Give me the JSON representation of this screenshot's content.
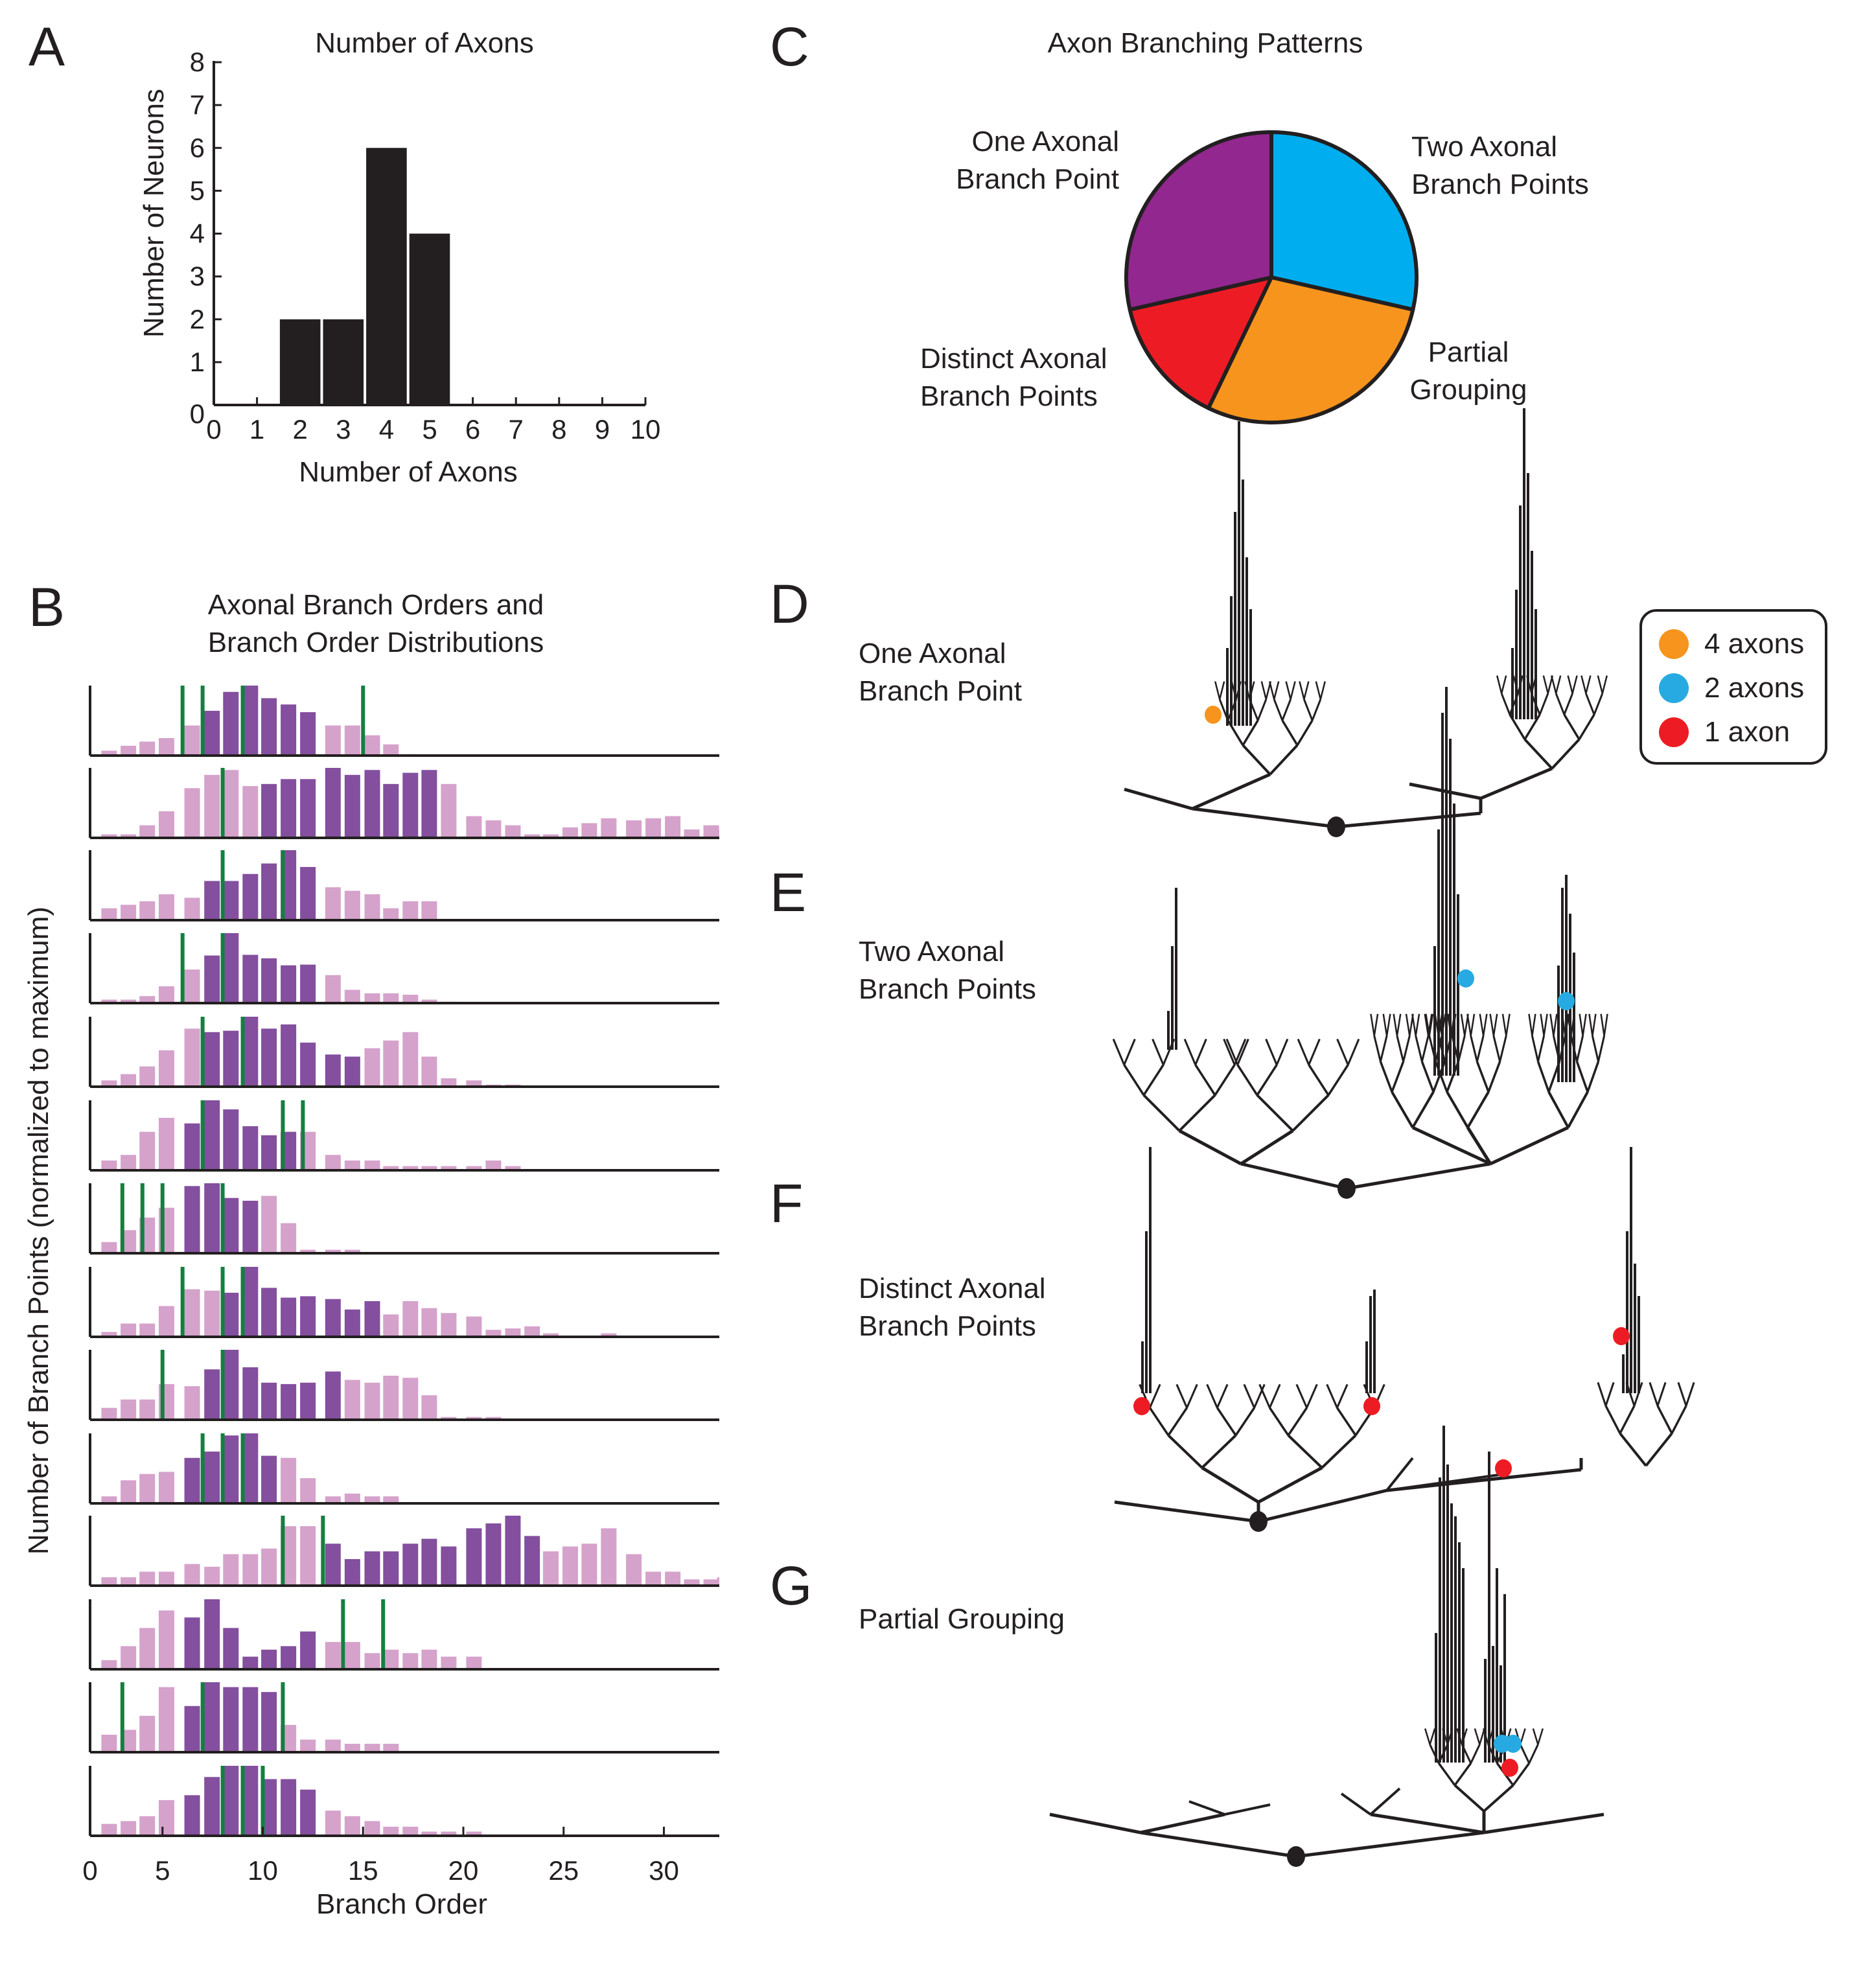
{
  "panels": {
    "A": {
      "letter": "A"
    },
    "B": {
      "letter": "B"
    },
    "C": {
      "letter": "C"
    },
    "D": {
      "letter": "D",
      "label_line1": "One Axonal",
      "label_line2": "Branch Point"
    },
    "E": {
      "letter": "E",
      "label_line1": "Two Axonal",
      "label_line2": "Branch Points"
    },
    "F": {
      "letter": "F",
      "label_line1": "Distinct Axonal",
      "label_line2": "Branch Points"
    },
    "G": {
      "letter": "G",
      "label_line1": "Partial Grouping"
    }
  },
  "legend": {
    "items": [
      {
        "label": "4 axons",
        "color": "#f7941d"
      },
      {
        "label": "2 axons",
        "color": "#27aae1"
      },
      {
        "label": "1 axon",
        "color": "#ed1c24"
      }
    ]
  },
  "dendrogram_markers": {
    "D": [
      {
        "axons": 4
      }
    ],
    "E": [
      {
        "axons": 2
      },
      {
        "axons": 2
      }
    ],
    "F": [
      {
        "axons": 1
      },
      {
        "axons": 1
      },
      {
        "axons": 1
      },
      {
        "axons": 1
      }
    ],
    "G": [
      {
        "axons": 2
      },
      {
        "axons": 2
      },
      {
        "axons": 1
      }
    ]
  },
  "chart_data": [
    {
      "id": "A",
      "type": "bar",
      "title": "Number of Axons",
      "xlabel": "Number of Axons",
      "ylabel": "Number of Neurons",
      "categories": [
        2,
        3,
        4,
        5
      ],
      "values": [
        2,
        2,
        6,
        4
      ],
      "xlim": [
        0,
        10
      ],
      "ylim": [
        0,
        8
      ],
      "xticks": [
        0,
        1,
        2,
        3,
        4,
        5,
        6,
        7,
        8,
        9,
        10
      ],
      "yticks": [
        0,
        1,
        2,
        3,
        4,
        5,
        6,
        7,
        8
      ],
      "bar_color": "#231f20"
    },
    {
      "id": "C",
      "type": "pie",
      "title": "Axon Branching Patterns",
      "slices": [
        {
          "label": "Two Axonal Branch Points",
          "value": 4,
          "color": "#00aeef"
        },
        {
          "label": "Partial Grouping",
          "value": 4,
          "color": "#f7941d"
        },
        {
          "label": "Distinct Axonal Branch Points",
          "value": 2,
          "color": "#ed1c24"
        },
        {
          "label": "One Axonal Branch Point",
          "value": 4,
          "color": "#92278f"
        }
      ],
      "labels_display": {
        "one": [
          "One Axonal",
          "Branch Point"
        ],
        "two": [
          "Two Axonal",
          "Branch Points"
        ],
        "distinct": [
          "Distinct Axonal",
          "Branch Points"
        ],
        "partial": [
          "Partial",
          "Grouping"
        ]
      }
    },
    {
      "id": "B",
      "type": "bar",
      "title_line1": "Axonal Branch Orders and",
      "title_line2": "Branch Order Distributions",
      "xlabel": "Branch Order",
      "ylabel": "Number of Branch Points (normalized to maximum)",
      "xlim": [
        1.4,
        33.2
      ],
      "xticks": [
        0,
        5,
        10,
        15,
        20,
        25,
        30
      ],
      "ylim": [
        0,
        1
      ],
      "colors": {
        "core": "#834f9e",
        "tail": "#d5a2cb",
        "axon_marker": "#13803f"
      },
      "bin_centers": [
        2.34,
        3.3,
        4.24,
        5.2,
        6.48,
        7.47,
        8.41,
        9.38,
        10.31,
        11.28,
        12.25,
        13.5,
        14.47,
        15.46,
        16.39,
        17.36,
        18.3,
        19.27,
        20.53,
        21.5,
        22.47,
        23.43,
        24.36,
        25.33,
        26.28,
        27.25,
        28.5,
        29.47,
        30.44,
        31.39,
        32.36,
        33.04
      ],
      "rows": [
        {
          "values": [
            0.07,
            0.14,
            0.2,
            0.25,
            0.43,
            0.64,
            0.91,
            1.0,
            0.82,
            0.73,
            0.62,
            0.43,
            0.43,
            0.29,
            0.16,
            0.02
          ],
          "core": [
            6,
            11
          ],
          "axon_orders": [
            6,
            7,
            9,
            15
          ]
        },
        {
          "values": [
            0.05,
            0.05,
            0.18,
            0.38,
            0.71,
            0.9,
            0.97,
            0.74,
            0.77,
            0.84,
            0.84,
            1.0,
            0.9,
            0.97,
            0.77,
            0.93,
            0.97,
            0.77,
            0.31,
            0.25,
            0.18,
            0.05,
            0.05,
            0.15,
            0.21,
            0.28,
            0.25,
            0.28,
            0.31,
            0.12,
            0.18,
            0.12
          ],
          "core": [
            9,
            17
          ],
          "axon_orders": [
            8
          ]
        },
        {
          "values": [
            0.17,
            0.22,
            0.27,
            0.37,
            0.32,
            0.56,
            0.56,
            0.66,
            0.81,
            1.0,
            0.76,
            0.47,
            0.42,
            0.37,
            0.17,
            0.27,
            0.27
          ],
          "core": [
            6,
            11
          ],
          "axon_orders": [
            8,
            11
          ]
        },
        {
          "values": [
            0.05,
            0.05,
            0.1,
            0.24,
            0.48,
            0.68,
            1.0,
            0.69,
            0.64,
            0.54,
            0.55,
            0.4,
            0.19,
            0.14,
            0.14,
            0.12,
            0.05,
            0.02
          ],
          "core": [
            6,
            11
          ],
          "axon_orders": [
            6,
            8
          ]
        },
        {
          "values": [
            0.09,
            0.18,
            0.29,
            0.52,
            0.83,
            0.78,
            0.8,
            1.0,
            0.83,
            0.89,
            0.63,
            0.46,
            0.43,
            0.55,
            0.66,
            0.78,
            0.43,
            0.12,
            0.09,
            0.03,
            0.03
          ],
          "core": [
            6,
            13
          ],
          "axon_orders": [
            7,
            9
          ]
        },
        {
          "values": [
            0.14,
            0.22,
            0.55,
            0.75,
            0.67,
            1.0,
            0.87,
            0.63,
            0.5,
            0.55,
            0.55,
            0.22,
            0.14,
            0.14,
            0.06,
            0.06,
            0.06,
            0.06,
            0.06,
            0.14,
            0.06
          ],
          "core": [
            5,
            10
          ],
          "axon_orders": [
            7,
            11,
            12
          ]
        },
        {
          "values": [
            0.16,
            0.33,
            0.51,
            0.65,
            0.96,
            1.0,
            0.79,
            0.75,
            0.82,
            0.43,
            0.05,
            0.05,
            0.05
          ],
          "core": [
            5,
            8
          ],
          "axon_orders": [
            3,
            4,
            5,
            8
          ]
        },
        {
          "values": [
            0.07,
            0.19,
            0.19,
            0.44,
            0.68,
            0.66,
            0.63,
            1.0,
            0.7,
            0.56,
            0.58,
            0.54,
            0.39,
            0.51,
            0.32,
            0.51,
            0.41,
            0.34,
            0.29,
            0.1,
            0.12,
            0.15,
            0.05,
            0.01,
            0.01,
            0.05,
            0.01
          ],
          "core": [
            7,
            14
          ],
          "axon_orders": [
            6,
            8,
            9
          ]
        },
        {
          "values": [
            0.17,
            0.29,
            0.29,
            0.51,
            0.48,
            0.72,
            1.0,
            0.75,
            0.53,
            0.51,
            0.53,
            0.69,
            0.57,
            0.53,
            0.63,
            0.6,
            0.35,
            0.04,
            0.04,
            0.04
          ],
          "core": [
            6,
            12
          ],
          "axon_orders": [
            5,
            8
          ]
        },
        {
          "values": [
            0.1,
            0.33,
            0.42,
            0.45,
            0.65,
            0.74,
            0.97,
            1.0,
            0.68,
            0.65,
            0.36,
            0.1,
            0.14,
            0.1,
            0.1
          ],
          "core": [
            5,
            9
          ],
          "axon_orders": [
            7,
            8,
            9
          ]
        },
        {
          "values": [
            0.12,
            0.12,
            0.2,
            0.2,
            0.31,
            0.27,
            0.45,
            0.45,
            0.53,
            0.85,
            0.85,
            0.6,
            0.38,
            0.49,
            0.49,
            0.6,
            0.67,
            0.56,
            0.82,
            0.89,
            1.0,
            0.71,
            0.49,
            0.56,
            0.6,
            0.82,
            0.45,
            0.2,
            0.2,
            0.09,
            0.09,
            0.12
          ],
          "core": [
            12,
            22
          ],
          "axon_orders": [
            11,
            13
          ]
        },
        {
          "values": [
            0.13,
            0.33,
            0.59,
            0.84,
            0.74,
            1.0,
            0.59,
            0.18,
            0.28,
            0.33,
            0.54,
            0.39,
            0.39,
            0.23,
            0.28,
            0.23,
            0.28,
            0.18,
            0.18
          ],
          "core": [
            5,
            11
          ],
          "axon_orders": [
            14,
            16
          ]
        },
        {
          "values": [
            0.25,
            0.32,
            0.52,
            0.93,
            0.66,
            1.0,
            0.93,
            0.93,
            0.86,
            0.39,
            0.18,
            0.18,
            0.12,
            0.12,
            0.12
          ],
          "core": [
            5,
            9
          ],
          "axon_orders": [
            3,
            7,
            11
          ]
        },
        {
          "values": [
            0.17,
            0.21,
            0.28,
            0.51,
            0.58,
            0.84,
            1.0,
            1.0,
            0.81,
            0.81,
            0.66,
            0.36,
            0.28,
            0.21,
            0.13,
            0.13,
            0.06,
            0.06,
            0.06
          ],
          "core": [
            5,
            11
          ],
          "axon_orders": [
            8,
            9,
            10
          ]
        }
      ]
    }
  ]
}
